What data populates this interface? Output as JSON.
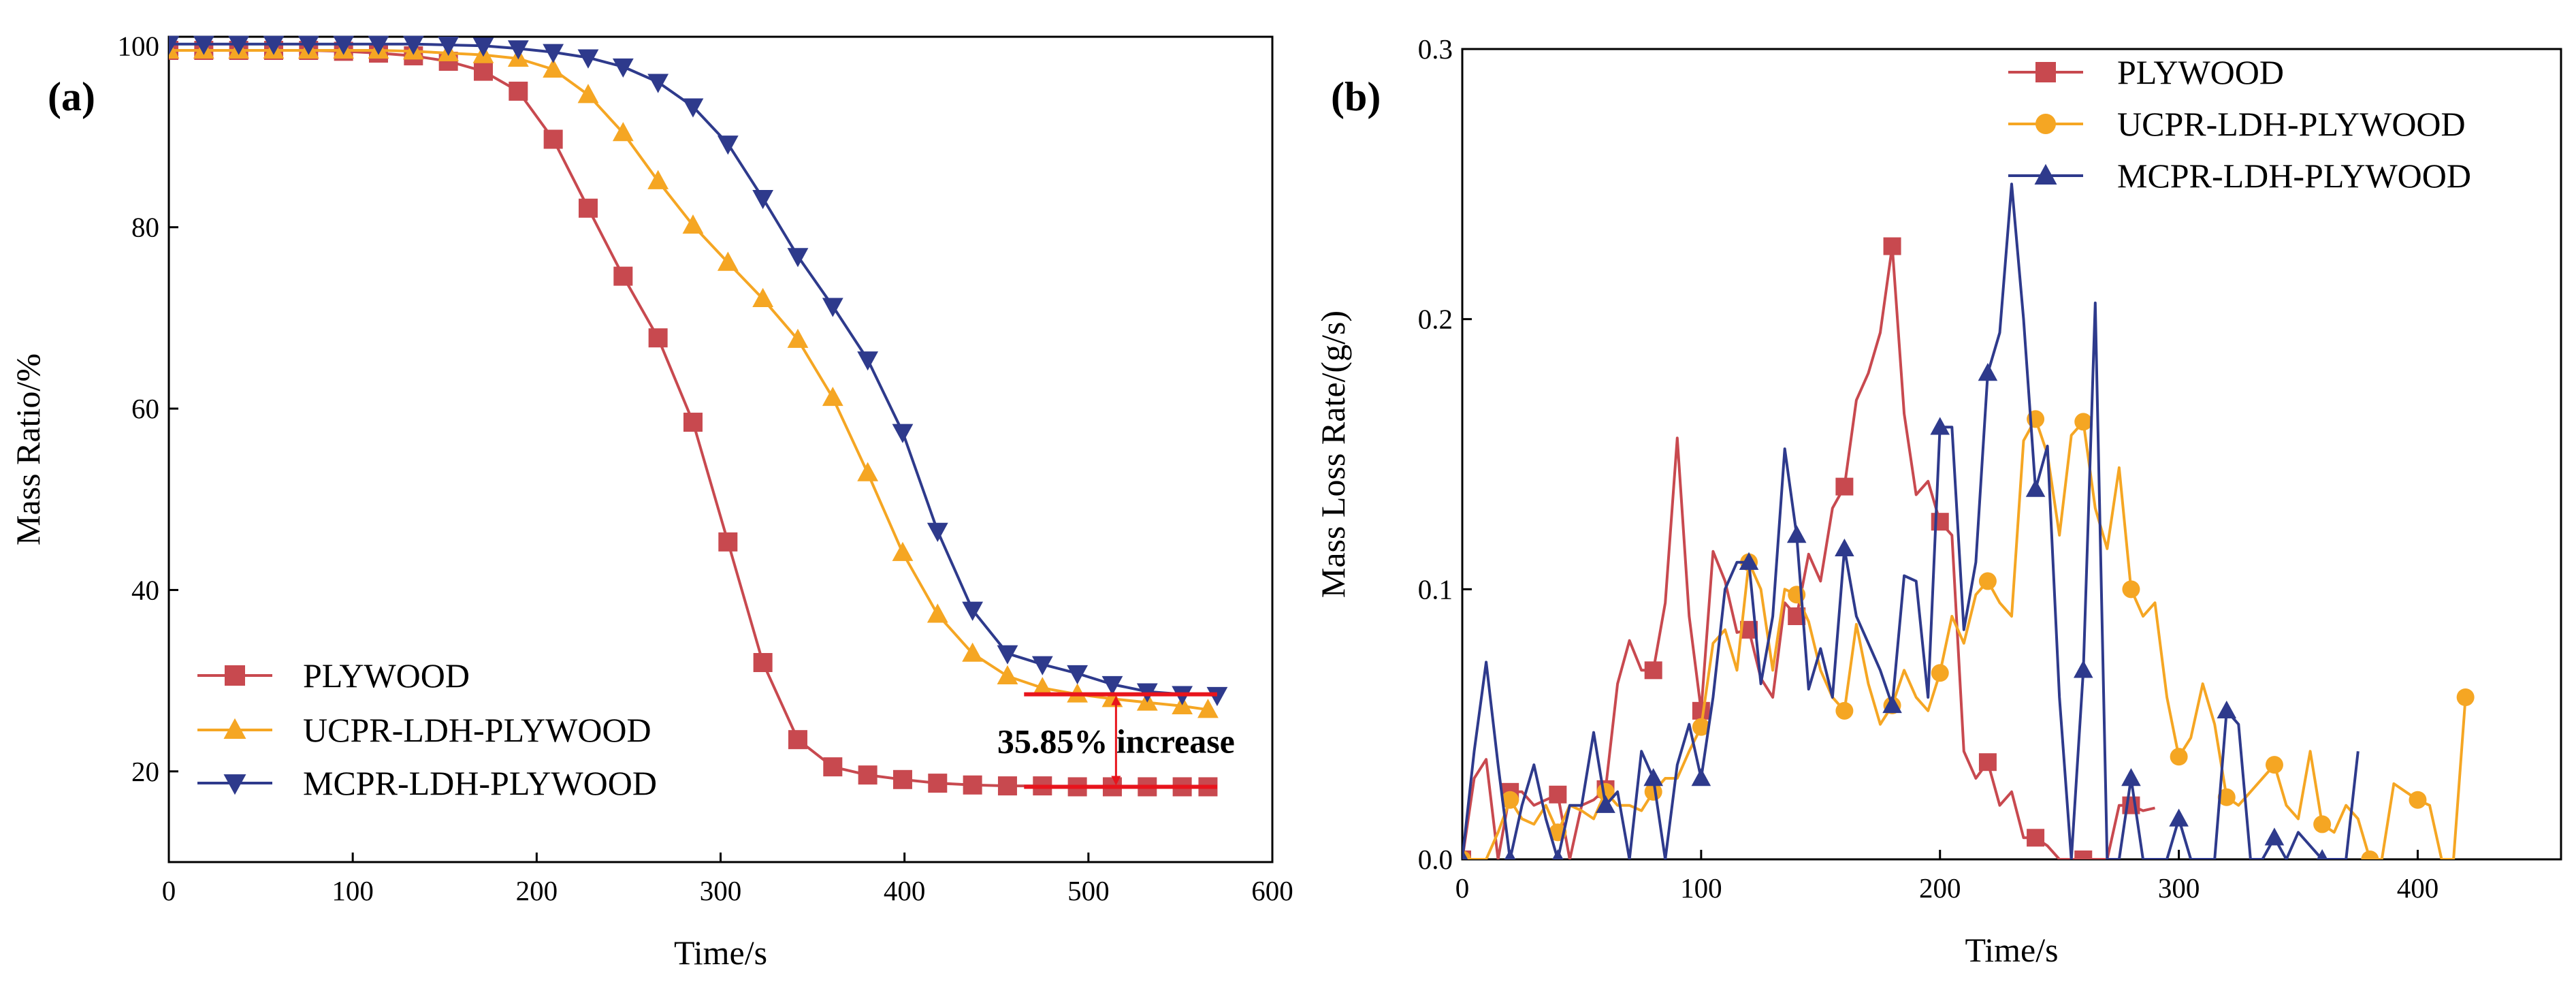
{
  "chart_data": [
    {
      "type": "line",
      "panel_label": "(a)",
      "xlabel": "Time/s",
      "ylabel": "Mass Ratio/%",
      "xlim": [
        0,
        600
      ],
      "ylim": [
        10,
        101
      ],
      "xticks": [
        0,
        100,
        200,
        300,
        400,
        500,
        600
      ],
      "yticks": [
        20,
        40,
        60,
        80,
        100
      ],
      "legend": "bottom-left",
      "annotation": {
        "text": "35.85% increase",
        "x": 515,
        "y_from": 18.3,
        "y_to": 28.5
      },
      "series": [
        {
          "name": "PLYWOOD",
          "color": "#c8494f",
          "marker": "square",
          "x": [
            0,
            19,
            38,
            57,
            76,
            95,
            114,
            133,
            152,
            171,
            190,
            209,
            228,
            247,
            266,
            285,
            304,
            323,
            342,
            361,
            380,
            399,
            418,
            437,
            456,
            475,
            494,
            513,
            532,
            551,
            565
          ],
          "y": [
            99.5,
            99.5,
            99.5,
            99.5,
            99.5,
            99.4,
            99.2,
            98.9,
            98.3,
            97.2,
            95.0,
            89.7,
            82.1,
            74.6,
            67.8,
            58.5,
            45.3,
            32.0,
            23.5,
            20.5,
            19.6,
            19.1,
            18.7,
            18.5,
            18.4,
            18.4,
            18.3,
            18.3,
            18.3,
            18.3,
            18.3
          ]
        },
        {
          "name": "UCPR-LDH-PLYWOOD",
          "color": "#f5a623",
          "marker": "triangle-up",
          "x": [
            0,
            19,
            38,
            57,
            76,
            95,
            114,
            133,
            152,
            171,
            190,
            209,
            228,
            247,
            266,
            285,
            304,
            323,
            342,
            361,
            380,
            399,
            418,
            437,
            456,
            475,
            494,
            513,
            532,
            551,
            565
          ],
          "y": [
            99.5,
            99.5,
            99.5,
            99.5,
            99.5,
            99.5,
            99.5,
            99.4,
            99.2,
            99.0,
            98.6,
            97.4,
            94.6,
            90.4,
            85.1,
            80.2,
            76.1,
            72.1,
            67.6,
            61.2,
            52.9,
            44.1,
            37.3,
            33.0,
            30.5,
            29.2,
            28.5,
            28.0,
            27.6,
            27.2,
            26.8
          ]
        },
        {
          "name": "MCPR-LDH-PLYWOOD",
          "color": "#2e3a8c",
          "marker": "triangle-down",
          "x": [
            0,
            19,
            38,
            57,
            76,
            95,
            114,
            133,
            152,
            171,
            190,
            209,
            228,
            247,
            266,
            285,
            304,
            323,
            342,
            361,
            380,
            399,
            418,
            437,
            456,
            475,
            494,
            513,
            532,
            551,
            570
          ],
          "y": [
            100.2,
            100.2,
            100.2,
            100.2,
            100.2,
            100.2,
            100.2,
            100.2,
            100.1,
            100.0,
            99.7,
            99.3,
            98.7,
            97.7,
            96.0,
            93.3,
            89.2,
            83.2,
            76.8,
            71.3,
            65.4,
            57.4,
            46.5,
            37.8,
            33.0,
            31.8,
            30.8,
            29.6,
            28.8,
            28.5,
            28.4
          ]
        }
      ]
    },
    {
      "type": "line",
      "panel_label": "(b)",
      "xlabel": "Time/s",
      "ylabel": "Mass Loss Rate/(g/s)",
      "xlim": [
        0,
        460
      ],
      "ylim": [
        0,
        0.3
      ],
      "xticks": [
        0,
        100,
        200,
        300,
        400
      ],
      "yticks": [
        0.0,
        0.1,
        0.2,
        0.3
      ],
      "ytick_labels": [
        "0.0",
        "0.1",
        "0.2",
        "0.3"
      ],
      "legend": "top-right",
      "series": [
        {
          "name": "PLYWOOD",
          "color": "#c8494f",
          "marker": "square",
          "x": [
            0,
            5,
            10,
            15,
            20,
            25,
            30,
            35,
            40,
            45,
            50,
            55,
            60,
            65,
            70,
            75,
            80,
            85,
            90,
            95,
            100,
            105,
            110,
            115,
            120,
            125,
            130,
            135,
            140,
            145,
            150,
            155,
            160,
            165,
            170,
            175,
            180,
            185,
            190,
            195,
            200,
            205,
            210,
            215,
            220,
            225,
            230,
            235,
            240,
            245,
            250,
            255,
            260,
            265,
            270,
            275,
            280,
            285,
            290
          ],
          "y": [
            0.0,
            0.03,
            0.037,
            0.0,
            0.025,
            0.025,
            0.02,
            0.022,
            0.024,
            0.0,
            0.02,
            0.022,
            0.026,
            0.065,
            0.081,
            0.07,
            0.07,
            0.095,
            0.156,
            0.09,
            0.055,
            0.114,
            0.103,
            0.084,
            0.085,
            0.067,
            0.06,
            0.095,
            0.09,
            0.113,
            0.103,
            0.13,
            0.138,
            0.17,
            0.18,
            0.195,
            0.227,
            0.165,
            0.135,
            0.14,
            0.125,
            0.12,
            0.04,
            0.03,
            0.036,
            0.02,
            0.025,
            0.008,
            0.008,
            0.005,
            0.0,
            0.0,
            0.0,
            0.0,
            0.0,
            0.02,
            0.02,
            0.018,
            0.019
          ]
        },
        {
          "name": "UCPR-LDH-PLYWOOD",
          "color": "#f5a623",
          "marker": "circle",
          "x": [
            0,
            5,
            10,
            15,
            20,
            25,
            30,
            35,
            40,
            45,
            50,
            55,
            60,
            65,
            70,
            75,
            80,
            85,
            90,
            95,
            100,
            105,
            110,
            115,
            120,
            125,
            130,
            135,
            140,
            145,
            150,
            155,
            160,
            165,
            170,
            175,
            180,
            185,
            190,
            195,
            200,
            205,
            210,
            215,
            220,
            225,
            230,
            235,
            240,
            245,
            250,
            255,
            260,
            265,
            270,
            275,
            280,
            285,
            290,
            295,
            300,
            305,
            310,
            315,
            320,
            325,
            330,
            335,
            340,
            345,
            350,
            355,
            360,
            365,
            370,
            375,
            380,
            385,
            390,
            395,
            400,
            405,
            410,
            415,
            420
          ],
          "y": [
            0.0,
            0.0,
            0.0,
            0.01,
            0.022,
            0.015,
            0.013,
            0.02,
            0.01,
            0.02,
            0.018,
            0.015,
            0.025,
            0.02,
            0.02,
            0.018,
            0.025,
            0.03,
            0.03,
            0.04,
            0.049,
            0.08,
            0.085,
            0.07,
            0.11,
            0.1,
            0.07,
            0.1,
            0.098,
            0.088,
            0.07,
            0.06,
            0.055,
            0.087,
            0.065,
            0.05,
            0.057,
            0.07,
            0.06,
            0.055,
            0.069,
            0.09,
            0.08,
            0.098,
            0.103,
            0.095,
            0.09,
            0.155,
            0.163,
            0.15,
            0.12,
            0.157,
            0.162,
            0.13,
            0.115,
            0.145,
            0.1,
            0.09,
            0.095,
            0.06,
            0.038,
            0.045,
            0.065,
            0.05,
            0.023,
            0.02,
            0.025,
            0.03,
            0.035,
            0.02,
            0.015,
            0.04,
            0.013,
            0.01,
            0.02,
            0.015,
            0.0,
            0.0,
            0.028,
            0.025,
            0.022,
            0.02,
            0.0,
            0.0,
            0.06
          ]
        },
        {
          "name": "MCPR-LDH-PLYWOOD",
          "color": "#2e3a8c",
          "marker": "triangle-up",
          "x": [
            0,
            5,
            10,
            15,
            20,
            25,
            30,
            35,
            40,
            45,
            50,
            55,
            60,
            65,
            70,
            75,
            80,
            85,
            90,
            95,
            100,
            105,
            110,
            115,
            120,
            125,
            130,
            135,
            140,
            145,
            150,
            155,
            160,
            165,
            170,
            175,
            180,
            185,
            190,
            195,
            200,
            205,
            210,
            215,
            220,
            225,
            230,
            235,
            240,
            245,
            250,
            255,
            260,
            265,
            270,
            275,
            280,
            285,
            290,
            295,
            300,
            305,
            310,
            315,
            320,
            325,
            330,
            335,
            340,
            345,
            350,
            355,
            360,
            365,
            370,
            375
          ],
          "y": [
            0.0,
            0.04,
            0.073,
            0.035,
            0.0,
            0.02,
            0.035,
            0.015,
            0.0,
            0.02,
            0.02,
            0.047,
            0.02,
            0.025,
            0.0,
            0.04,
            0.03,
            0.0,
            0.035,
            0.05,
            0.03,
            0.06,
            0.1,
            0.11,
            0.11,
            0.065,
            0.09,
            0.152,
            0.12,
            0.063,
            0.078,
            0.06,
            0.115,
            0.09,
            0.08,
            0.07,
            0.057,
            0.105,
            0.103,
            0.06,
            0.16,
            0.16,
            0.085,
            0.11,
            0.18,
            0.195,
            0.25,
            0.2,
            0.137,
            0.153,
            0.06,
            0.0,
            0.07,
            0.206,
            0.0,
            0.0,
            0.03,
            0.0,
            0.0,
            0.0,
            0.015,
            0.0,
            0.0,
            0.0,
            0.055,
            0.05,
            0.0,
            0.0,
            0.008,
            0.0,
            0.01,
            0.005,
            0.0,
            0.0,
            0.0,
            0.04
          ]
        }
      ]
    }
  ]
}
